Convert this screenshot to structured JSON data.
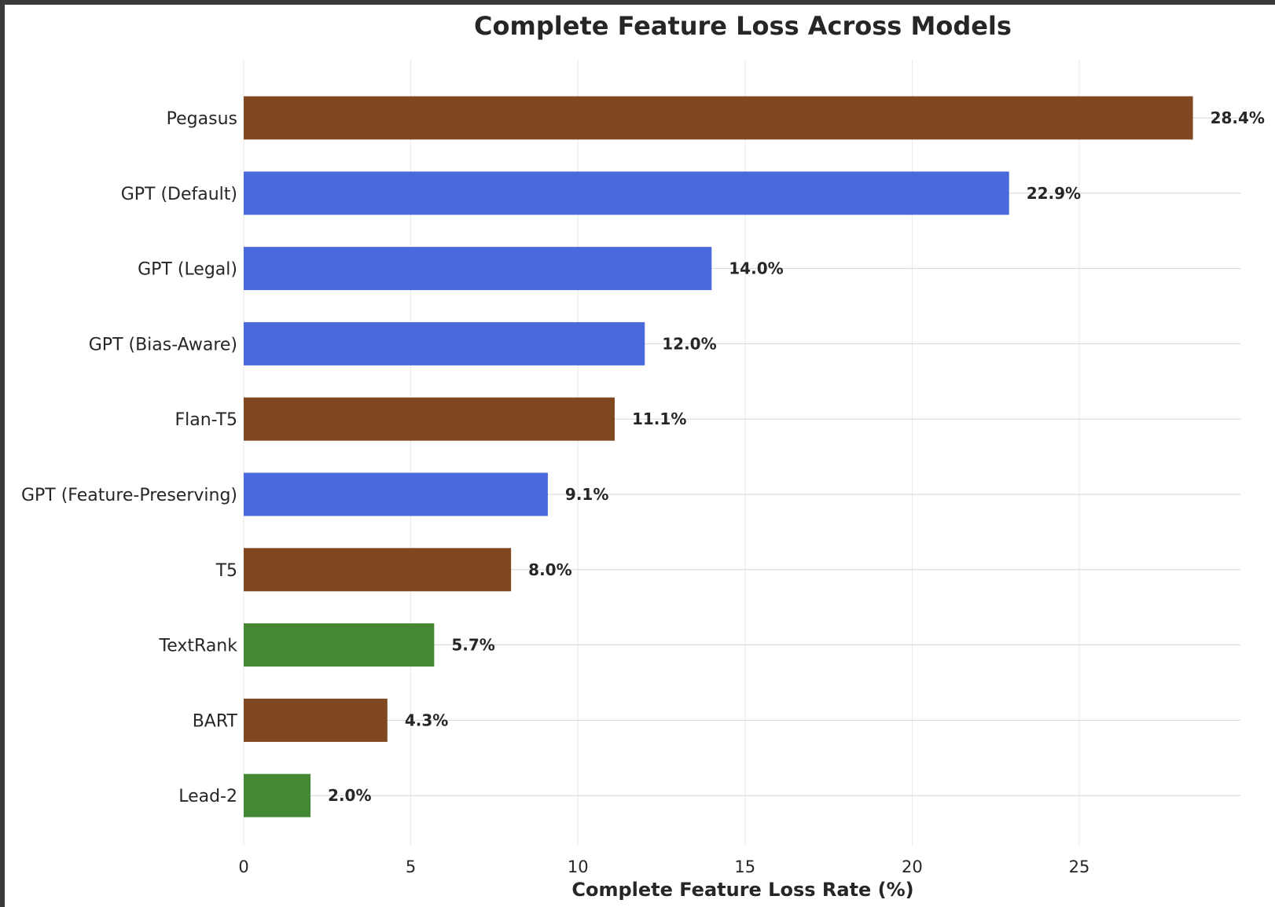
{
  "chart_data": {
    "type": "bar",
    "orientation": "horizontal",
    "title": "Complete Feature Loss Across Models",
    "xlabel": "Complete Feature Loss Rate (%)",
    "ylabel": "",
    "xlim": [
      0,
      29.8
    ],
    "xticks": [
      0,
      5,
      10,
      15,
      20,
      25
    ],
    "grid": true,
    "categories": [
      "Pegasus",
      "GPT (Default)",
      "GPT (Legal)",
      "GPT (Bias-Aware)",
      "Flan-T5",
      "GPT (Feature-Preserving)",
      "T5",
      "TextRank",
      "BART",
      "Lead-2"
    ],
    "values": [
      28.4,
      22.9,
      14.0,
      12.0,
      11.1,
      9.1,
      8.0,
      5.7,
      4.3,
      2.0
    ],
    "value_labels": [
      "28.4%",
      "22.9%",
      "14.0%",
      "12.0%",
      "11.1%",
      "9.1%",
      "8.0%",
      "5.7%",
      "4.3%",
      "2.0%"
    ],
    "bar_colors": [
      "#804820",
      "#4a69dc",
      "#4a69dc",
      "#4a69dc",
      "#804820",
      "#4a69dc",
      "#804820",
      "#448834",
      "#804820",
      "#448834"
    ]
  }
}
